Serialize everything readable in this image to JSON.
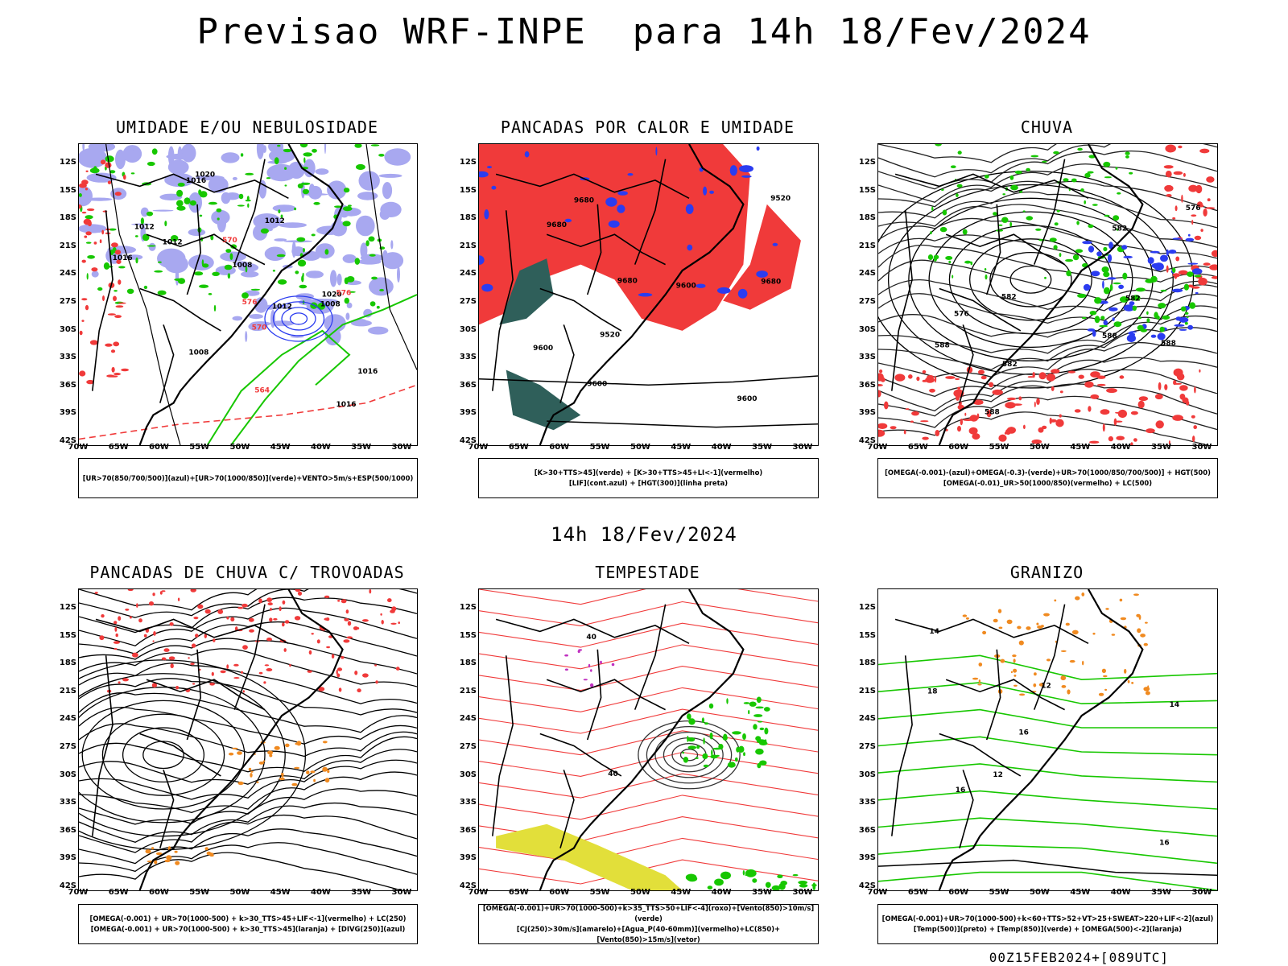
{
  "title": "Previsao WRF-INPE  para 14h 18/Fev/2024",
  "subtitle": "14h 18/Fev/2024",
  "footer": "00Z15FEB2024+[089UTC]",
  "lat_ticks": [
    "12S",
    "15S",
    "18S",
    "21S",
    "24S",
    "27S",
    "30S",
    "33S",
    "36S",
    "39S",
    "42S"
  ],
  "lon_ticks": [
    "70W",
    "65W",
    "60W",
    "55W",
    "50W",
    "45W",
    "40W",
    "35W",
    "30W"
  ],
  "panels": [
    {
      "title": "UMIDADE E/OU NEBULOSIDADE",
      "legend": [
        "[UR>70(850/700/500)](azul)+[UR>70(1000/850)](verde)+VENTO>5m/s+ESP(500/1000)"
      ],
      "labels": [
        "1012",
        "1012",
        "1008",
        "1016",
        "1008",
        "1012",
        "1016",
        "1012",
        "1016",
        "1008",
        "1020",
        "1020",
        "1016",
        "576",
        "570",
        "564",
        "570",
        "576"
      ]
    },
    {
      "title": "PANCADAS POR CALOR E UMIDADE",
      "legend": [
        "[K>30+TTS>45](verde) + [K>30+TTS>45+LI<-1](vermelho)",
        "[LIF](cont.azul) + [HGT(300)](linha preta)"
      ],
      "labels": [
        "9680",
        "9680",
        "9680",
        "9600",
        "9600",
        "9680",
        "9600",
        "9600",
        "9520",
        "9520"
      ]
    },
    {
      "title": "CHUVA",
      "legend": [
        "[OMEGA(-0.001)-(azul)+OMEGA(-0.3)-(verde)+UR>70(1000/850/700/500)] + HGT(500)",
        "[OMEGA(-0.01)_UR>50(1000/850)(vermelho) + LC(500)"
      ],
      "labels": [
        "588",
        "588",
        "582",
        "582",
        "588",
        "582",
        "576",
        "576",
        "582",
        "588"
      ]
    },
    {
      "title": "PANCADAS DE CHUVA C/ TROVOADAS",
      "legend": [
        "[OMEGA(-0.001) + UR>70(1000-500) + k>30_TTS>45+LIF<-1](vermelho) + LC(250)",
        "[OMEGA(-0.001) + UR>70(1000-500) + k>30_TTS>45](laranja) + [DIVG(250)](azul)"
      ],
      "labels": []
    },
    {
      "title": "TEMPESTADE",
      "legend": [
        "[OMEGA(-0.001)+UR>70(1000-500)+k>35_TTS>50+LIF<-4](roxo)+[Vento(850)>10m/s](verde)",
        "[CJ(250)>30m/s](amarelo)+[Agua_P(40-60mm)](vermelho)+LC(850)+[Vento(850)>15m/s](vetor)"
      ],
      "labels": [
        "40",
        "40"
      ]
    },
    {
      "title": "GRANIZO",
      "legend": [
        "[OMEGA(-0.001)+UR>70(1000-500)+k<60+TTS>52+VT>25+SWEAT>220+LIF<-2](azul)",
        "[Temp(500)](preto) + [Temp(850)](verde) + [OMEGA(500)<-2](laranja)"
      ],
      "labels": [
        "16",
        "18",
        "16",
        "14",
        "12",
        "12",
        "16",
        "14"
      ]
    }
  ],
  "colors": {
    "green": "#17c700",
    "blue": "#2b3cf0",
    "lavender": "#a8a8f0",
    "red": "#f03a3a",
    "darkgreen": "#2f5f5a",
    "orange": "#f08a20",
    "yellow": "#e2df3a",
    "black": "#000000"
  }
}
